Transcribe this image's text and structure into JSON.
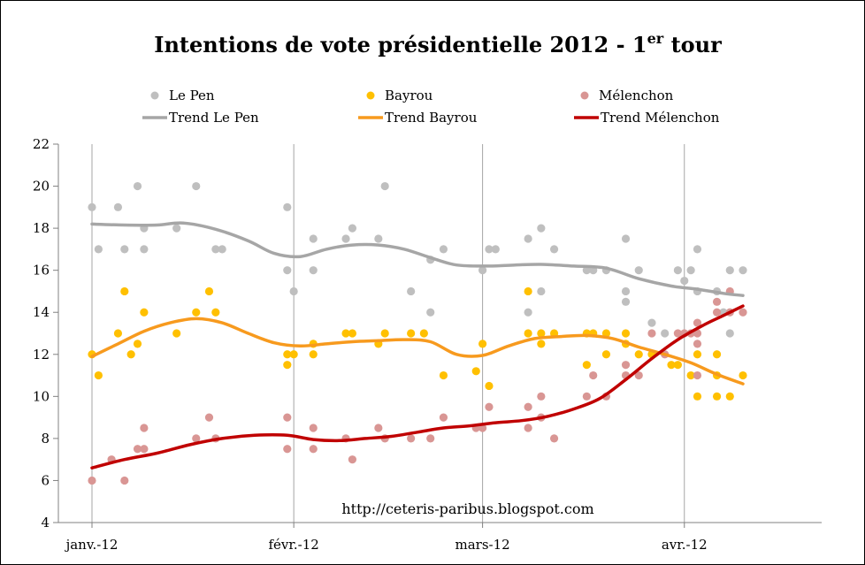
{
  "chart_data": {
    "type": "scatter",
    "title": "Intentions de vote présidentielle 2012 - 1",
    "title_superscript": "er",
    "title_suffix": " tour",
    "annotation": "http://ceteris-paribus.blogspot.com",
    "ylim": [
      4,
      22
    ],
    "y_ticks": [
      4,
      6,
      8,
      10,
      12,
      14,
      16,
      18,
      20,
      22
    ],
    "x_ticks": [
      {
        "label": "janv.-12",
        "day": 0
      },
      {
        "label": "févr.-12",
        "day": 31
      },
      {
        "label": "mars-12",
        "day": 60
      },
      {
        "label": "avr.-12",
        "day": 91
      }
    ],
    "xlim_days": [
      0,
      112
    ],
    "grid": "vertical lines at month ticks",
    "legend_position": "top",
    "series": [
      {
        "name": "Le Pen",
        "kind": "points",
        "color": "#bfbfbf",
        "points": [
          [
            0,
            19
          ],
          [
            1,
            17
          ],
          [
            4,
            19
          ],
          [
            5,
            17
          ],
          [
            7,
            20
          ],
          [
            8,
            18
          ],
          [
            8,
            17
          ],
          [
            13,
            18
          ],
          [
            16,
            20
          ],
          [
            19,
            17
          ],
          [
            20,
            17
          ],
          [
            30,
            19
          ],
          [
            30,
            16
          ],
          [
            31,
            15
          ],
          [
            34,
            16
          ],
          [
            34,
            17.5
          ],
          [
            39,
            17.5
          ],
          [
            40,
            18
          ],
          [
            44,
            17.5
          ],
          [
            45,
            20
          ],
          [
            49,
            15
          ],
          [
            52,
            14
          ],
          [
            52,
            16.5
          ],
          [
            54,
            17
          ],
          [
            60,
            16
          ],
          [
            61,
            17
          ],
          [
            62,
            17
          ],
          [
            67,
            17.5
          ],
          [
            67,
            14
          ],
          [
            69,
            18
          ],
          [
            69,
            15
          ],
          [
            71,
            17
          ],
          [
            76,
            16
          ],
          [
            77,
            16
          ],
          [
            79,
            16
          ],
          [
            82,
            15
          ],
          [
            82,
            14.5
          ],
          [
            82,
            17.5
          ],
          [
            84,
            16
          ],
          [
            86,
            13.5
          ],
          [
            88,
            13
          ],
          [
            90,
            16
          ],
          [
            91,
            15.5
          ],
          [
            92,
            16
          ],
          [
            93,
            15
          ],
          [
            93,
            17
          ],
          [
            96,
            15
          ],
          [
            97,
            14
          ],
          [
            98,
            16
          ],
          [
            98,
            13
          ],
          [
            100,
            16
          ]
        ]
      },
      {
        "name": "Bayrou",
        "kind": "points",
        "color": "#ffc000",
        "points": [
          [
            0,
            12
          ],
          [
            1,
            11
          ],
          [
            4,
            13
          ],
          [
            5,
            15
          ],
          [
            6,
            12
          ],
          [
            7,
            12.5
          ],
          [
            8,
            14
          ],
          [
            13,
            13
          ],
          [
            16,
            14
          ],
          [
            18,
            15
          ],
          [
            19,
            14
          ],
          [
            30,
            11.5
          ],
          [
            30,
            12
          ],
          [
            31,
            12
          ],
          [
            34,
            12.5
          ],
          [
            34,
            12
          ],
          [
            39,
            13
          ],
          [
            40,
            13
          ],
          [
            44,
            12.5
          ],
          [
            45,
            13
          ],
          [
            49,
            13
          ],
          [
            51,
            13
          ],
          [
            54,
            11
          ],
          [
            59,
            11.2
          ],
          [
            60,
            12.5
          ],
          [
            61,
            10.5
          ],
          [
            67,
            15
          ],
          [
            67,
            13
          ],
          [
            69,
            13
          ],
          [
            69,
            12.5
          ],
          [
            71,
            13
          ],
          [
            76,
            11.5
          ],
          [
            76,
            13
          ],
          [
            77,
            13
          ],
          [
            79,
            13
          ],
          [
            79,
            12
          ],
          [
            82,
            13
          ],
          [
            82,
            12.5
          ],
          [
            84,
            12
          ],
          [
            86,
            12
          ],
          [
            89,
            11.5
          ],
          [
            90,
            11.5
          ],
          [
            92,
            11
          ],
          [
            93,
            12
          ],
          [
            93,
            10
          ],
          [
            96,
            11
          ],
          [
            96,
            10
          ],
          [
            96,
            12
          ],
          [
            98,
            10
          ],
          [
            100,
            11
          ]
        ]
      },
      {
        "name": "Mélenchon",
        "kind": "points",
        "color": "#d99694",
        "points": [
          [
            0,
            6
          ],
          [
            3,
            7
          ],
          [
            5,
            6
          ],
          [
            7,
            7.5
          ],
          [
            8,
            7.5
          ],
          [
            8,
            8.5
          ],
          [
            16,
            8
          ],
          [
            18,
            9
          ],
          [
            19,
            8
          ],
          [
            30,
            9
          ],
          [
            30,
            7.5
          ],
          [
            34,
            8.5
          ],
          [
            34,
            7.5
          ],
          [
            39,
            8
          ],
          [
            40,
            7
          ],
          [
            44,
            8.5
          ],
          [
            45,
            8
          ],
          [
            49,
            8
          ],
          [
            52,
            8
          ],
          [
            54,
            9
          ],
          [
            59,
            8.5
          ],
          [
            60,
            8.5
          ],
          [
            61,
            9.5
          ],
          [
            67,
            9.5
          ],
          [
            67,
            8.5
          ],
          [
            69,
            10
          ],
          [
            69,
            9
          ],
          [
            71,
            8
          ],
          [
            76,
            10
          ],
          [
            77,
            11
          ],
          [
            79,
            10
          ],
          [
            82,
            11.5
          ],
          [
            82,
            11
          ],
          [
            84,
            11
          ],
          [
            86,
            13
          ],
          [
            88,
            12
          ],
          [
            90,
            13
          ],
          [
            91,
            13
          ],
          [
            92,
            13
          ],
          [
            93,
            13
          ],
          [
            93,
            11
          ],
          [
            93,
            13.5
          ],
          [
            93,
            12.5
          ],
          [
            96,
            14.5
          ],
          [
            96,
            14
          ],
          [
            98,
            14
          ],
          [
            98,
            15
          ],
          [
            100,
            14
          ]
        ]
      },
      {
        "name": "Trend Le Pen",
        "kind": "line",
        "color": "#a6a6a6",
        "points": [
          [
            0,
            18.2
          ],
          [
            5,
            18.15
          ],
          [
            10,
            18.15
          ],
          [
            14,
            18.25
          ],
          [
            19,
            17.95
          ],
          [
            24,
            17.4
          ],
          [
            28,
            16.8
          ],
          [
            32,
            16.65
          ],
          [
            36,
            17
          ],
          [
            40,
            17.2
          ],
          [
            44,
            17.2
          ],
          [
            48,
            17
          ],
          [
            52,
            16.6
          ],
          [
            56,
            16.25
          ],
          [
            61,
            16.2
          ],
          [
            65,
            16.25
          ],
          [
            69,
            16.28
          ],
          [
            74,
            16.2
          ],
          [
            79,
            16.1
          ],
          [
            84,
            15.6
          ],
          [
            89,
            15.25
          ],
          [
            93,
            15.1
          ],
          [
            97,
            14.9
          ],
          [
            100,
            14.8
          ]
        ]
      },
      {
        "name": "Trend Bayrou",
        "kind": "line",
        "color": "#f79a1e",
        "points": [
          [
            0,
            11.9
          ],
          [
            4,
            12.5
          ],
          [
            8,
            13.1
          ],
          [
            12,
            13.5
          ],
          [
            16,
            13.7
          ],
          [
            20,
            13.5
          ],
          [
            24,
            13
          ],
          [
            28,
            12.55
          ],
          [
            32,
            12.4
          ],
          [
            36,
            12.5
          ],
          [
            40,
            12.6
          ],
          [
            44,
            12.65
          ],
          [
            48,
            12.7
          ],
          [
            52,
            12.6
          ],
          [
            56,
            12
          ],
          [
            60,
            11.95
          ],
          [
            64,
            12.4
          ],
          [
            68,
            12.75
          ],
          [
            72,
            12.85
          ],
          [
            76,
            12.9
          ],
          [
            80,
            12.75
          ],
          [
            84,
            12.35
          ],
          [
            88,
            12
          ],
          [
            92,
            11.6
          ],
          [
            96,
            11.05
          ],
          [
            100,
            10.6
          ]
        ]
      },
      {
        "name": "Trend Mélenchon",
        "kind": "line",
        "color": "#c00000",
        "points": [
          [
            0,
            6.6
          ],
          [
            5,
            7
          ],
          [
            10,
            7.3
          ],
          [
            15,
            7.7
          ],
          [
            20,
            8
          ],
          [
            25,
            8.15
          ],
          [
            30,
            8.15
          ],
          [
            34,
            7.95
          ],
          [
            38,
            7.9
          ],
          [
            42,
            8
          ],
          [
            46,
            8.1
          ],
          [
            50,
            8.3
          ],
          [
            54,
            8.5
          ],
          [
            58,
            8.6
          ],
          [
            62,
            8.75
          ],
          [
            66,
            8.85
          ],
          [
            70,
            9.05
          ],
          [
            74,
            9.4
          ],
          [
            78,
            9.9
          ],
          [
            82,
            10.8
          ],
          [
            86,
            11.8
          ],
          [
            90,
            12.7
          ],
          [
            94,
            13.4
          ],
          [
            97,
            13.85
          ],
          [
            100,
            14.3
          ]
        ]
      }
    ]
  }
}
